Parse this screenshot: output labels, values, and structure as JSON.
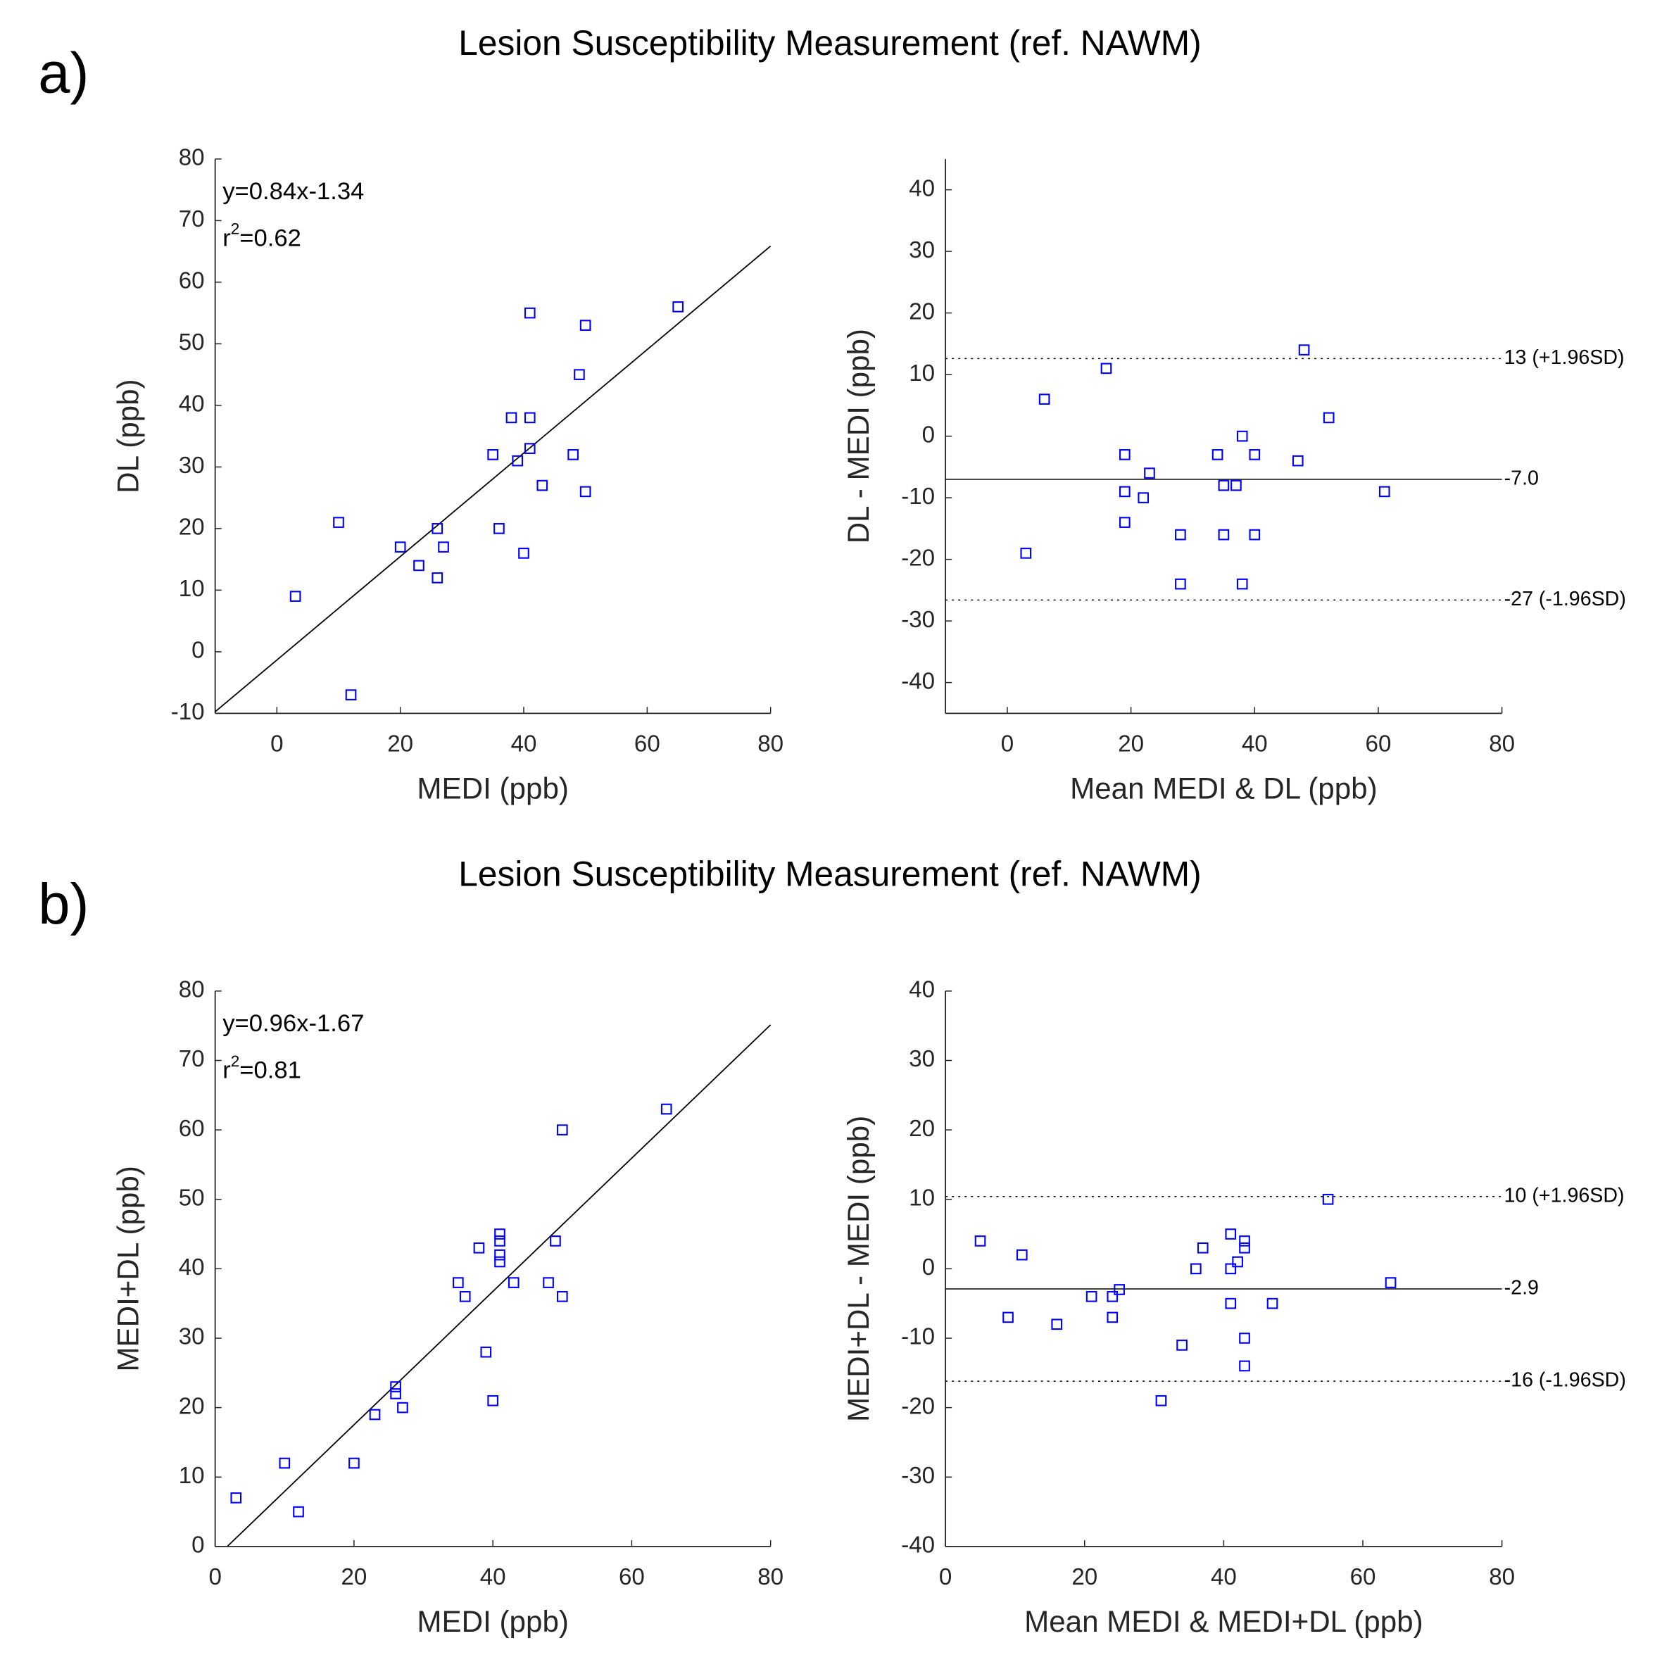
{
  "chart_data": [
    {
      "type": "scatter",
      "panel_label": "a)",
      "title": "Lesion Susceptibility Measurement (ref. NAWM)",
      "x_label": "MEDI (ppb)",
      "y_label": "DL (ppb)",
      "color": "#0000ff",
      "xlim": [
        -10,
        80
      ],
      "ylim": [
        -10,
        80
      ],
      "xticks": [
        0,
        20,
        40,
        60,
        80
      ],
      "yticks": [
        -10,
        0,
        10,
        20,
        30,
        40,
        50,
        60,
        70,
        80
      ],
      "x": [
        65,
        41,
        50,
        49,
        38,
        41,
        41,
        35,
        39,
        48,
        43,
        50,
        10,
        26,
        36,
        20,
        27,
        23,
        26,
        40,
        3,
        12
      ],
      "y": [
        56,
        55,
        53,
        45,
        38,
        38,
        33,
        32,
        31,
        32,
        27,
        26,
        21,
        20,
        20,
        17,
        17,
        14,
        12,
        16,
        9,
        -7
      ],
      "fit": {
        "slope": 0.84,
        "intercept": -1.34
      },
      "annotations": {
        "equation": "y=0.84x-1.34",
        "r2_base": "r",
        "r2_sup": "2",
        "r2_value": "=0.62"
      }
    },
    {
      "type": "scatter",
      "x_label": "Mean MEDI & DL (ppb)",
      "y_label": "DL - MEDI (ppb)",
      "color": "#0000ff",
      "xlim": [
        -10,
        80
      ],
      "ylim": [
        -45,
        45
      ],
      "xticks": [
        0,
        20,
        40,
        60,
        80
      ],
      "yticks": [
        -40,
        -30,
        -20,
        -10,
        0,
        10,
        20,
        30,
        40
      ],
      "x": [
        48,
        16,
        6,
        52,
        38,
        19,
        34,
        40,
        47,
        23,
        35,
        37,
        19,
        61,
        22,
        19,
        28,
        35,
        40,
        3,
        28,
        38
      ],
      "y": [
        14,
        11,
        6,
        3,
        0,
        -3,
        -3,
        -3,
        -4,
        -6,
        -8,
        -8,
        -9,
        -9,
        -10,
        -14,
        -16,
        -16,
        -16,
        -19,
        -24,
        -24
      ],
      "hlines": [
        {
          "value": 12.6,
          "label": "13 (+1.96SD)",
          "style": "dotted"
        },
        {
          "value": -7.0,
          "label": "-7.0",
          "style": "solid"
        },
        {
          "value": -26.6,
          "label": "-27 (-1.96SD)",
          "style": "dotted"
        }
      ]
    },
    {
      "type": "scatter",
      "panel_label": "b)",
      "title": "Lesion Susceptibility Measurement (ref. NAWM)",
      "x_label": "MEDI (ppb)",
      "y_label": "MEDI+DL (ppb)",
      "color": "#0000ff",
      "xlim": [
        0,
        80
      ],
      "ylim": [
        0,
        80
      ],
      "xticks": [
        0,
        20,
        40,
        60,
        80
      ],
      "yticks": [
        0,
        10,
        20,
        30,
        40,
        50,
        60,
        70,
        80
      ],
      "x": [
        65,
        50,
        41,
        41,
        49,
        38,
        41,
        41,
        35,
        43,
        48,
        36,
        50,
        39,
        26,
        26,
        40,
        23,
        27,
        10,
        20,
        3,
        12
      ],
      "y": [
        63,
        60,
        45,
        44,
        44,
        43,
        42,
        41,
        38,
        38,
        38,
        36,
        36,
        28,
        23,
        22,
        21,
        19,
        20,
        12,
        12,
        7,
        5
      ],
      "fit": {
        "slope": 0.96,
        "intercept": -1.67
      },
      "annotations": {
        "equation": "y=0.96x-1.67",
        "r2_base": "r",
        "r2_sup": "2",
        "r2_value": "=0.81"
      }
    },
    {
      "type": "scatter",
      "x_label": "Mean MEDI & MEDI+DL (ppb)",
      "y_label": "MEDI+DL - MEDI (ppb)",
      "color": "#0000ff",
      "xlim": [
        0,
        80
      ],
      "ylim": [
        -40,
        40
      ],
      "xticks": [
        0,
        20,
        40,
        60,
        80
      ],
      "yticks": [
        -40,
        -30,
        -20,
        -10,
        0,
        10,
        20,
        30,
        40
      ],
      "x": [
        55,
        5,
        41,
        43,
        43,
        37,
        11,
        42,
        41,
        36,
        64,
        25,
        21,
        24,
        41,
        47,
        9,
        24,
        16,
        43,
        34,
        43,
        31
      ],
      "y": [
        10,
        4,
        5,
        4,
        3,
        3,
        2,
        1,
        0,
        0,
        -2,
        -3,
        -4,
        -4,
        -5,
        -5,
        -7,
        -7,
        -8,
        -10,
        -11,
        -14,
        -19
      ],
      "hlines": [
        {
          "value": 10.4,
          "label": "10 (+1.96SD)",
          "style": "dotted"
        },
        {
          "value": -2.9,
          "label": "-2.9",
          "style": "solid"
        },
        {
          "value": -16.2,
          "label": "-16 (-1.96SD)",
          "style": "dotted"
        }
      ]
    }
  ]
}
